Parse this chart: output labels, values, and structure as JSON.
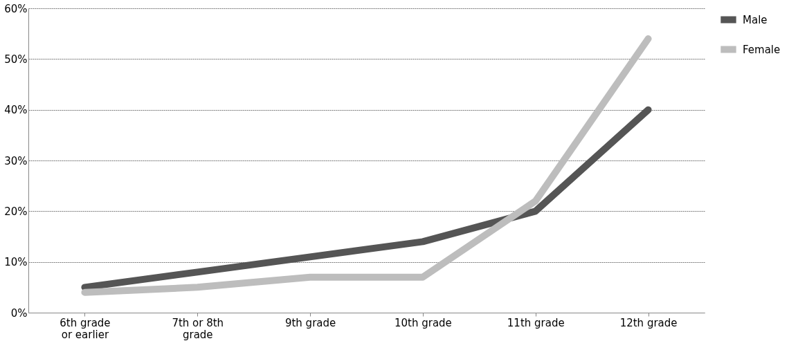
{
  "chart_data": {
    "type": "line",
    "categories": [
      "6th grade or earlier",
      "7th or 8th grade",
      "9th grade",
      "10th grade",
      "11th grade",
      "12th grade"
    ],
    "series": [
      {
        "name": "Male",
        "color": "#555555",
        "values": [
          5,
          8,
          11,
          14,
          20,
          40
        ]
      },
      {
        "name": "Female",
        "color": "#bdbdbd",
        "values": [
          4,
          5,
          7,
          7,
          22,
          54
        ]
      }
    ],
    "ylim": [
      0,
      60
    ],
    "yticks": [
      {
        "value": 0,
        "label": "0%"
      },
      {
        "value": 10,
        "label": "10%"
      },
      {
        "value": 20,
        "label": "20%"
      },
      {
        "value": 30,
        "label": "30%"
      },
      {
        "value": 40,
        "label": "40%"
      },
      {
        "value": 50,
        "label": "50%"
      },
      {
        "value": 60,
        "label": "60%"
      }
    ],
    "grid": "y",
    "legend": "right",
    "marker": "none",
    "line_style": "solid"
  }
}
